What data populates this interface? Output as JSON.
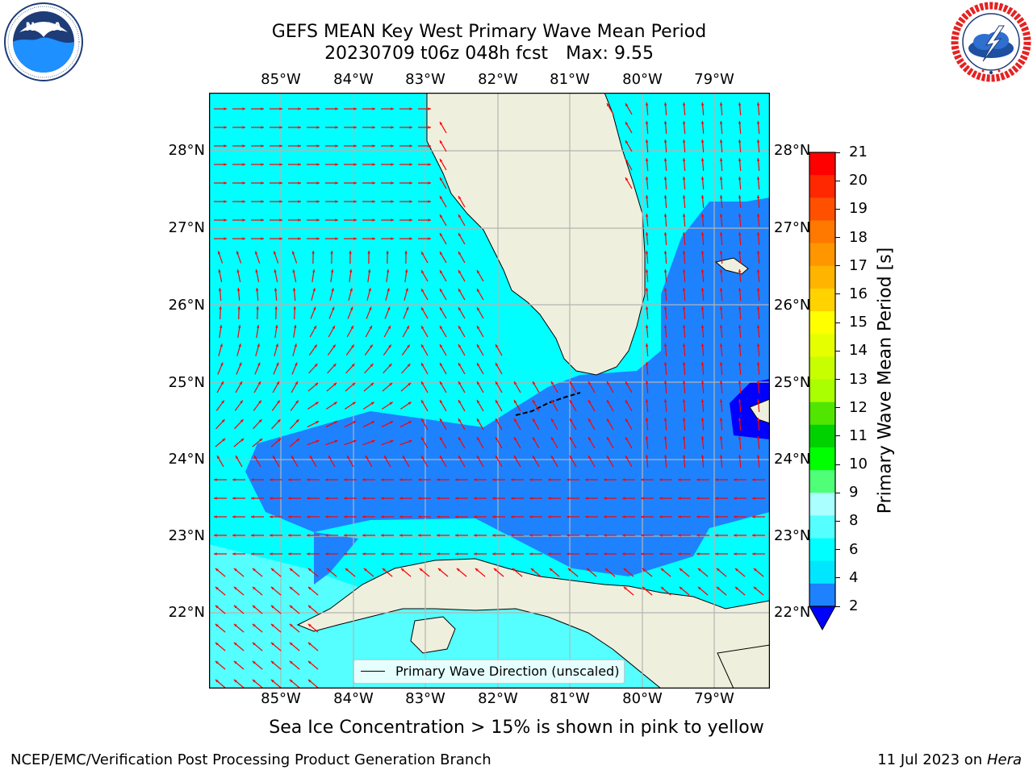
{
  "title": {
    "line1": "GEFS MEAN Key West Primary Wave Mean Period",
    "line2_date": "20230709 t06z 048h fcst",
    "line2_max": "Max: 9.55"
  },
  "logos": {
    "left": {
      "text": "NOAA",
      "ring_text": "NATIONAL OCEANIC AND ATMOSPHERIC ADMINISTRATION · U.S. DEPARTMENT OF COMMERCE",
      "icon": "noaa-logo"
    },
    "right": {
      "ring_text": "NATIONAL WEATHER SERVICE",
      "icon": "nws-logo"
    }
  },
  "map": {
    "lon_labels": [
      "85°W",
      "84°W",
      "83°W",
      "82°W",
      "81°W",
      "80°W",
      "79°W"
    ],
    "lat_labels": [
      "28°N",
      "27°N",
      "26°N",
      "25°N",
      "24°N",
      "23°N",
      "22°N"
    ],
    "extent": {
      "lon_min": -86.0,
      "lon_max": -78.25,
      "lat_min": 21.1,
      "lat_max": 28.75
    },
    "colors": {
      "land": "#efefdd",
      "ocean_4_6": "#00ffff",
      "ocean_6_8": "#55ffff",
      "ocean_2_4": "#1e82ff",
      "ocean_lt2": "#0000ff",
      "arrow": "#ff0000",
      "grid": "#b4b4b4"
    }
  },
  "legend": {
    "label": "Primary Wave Direction (unscaled)"
  },
  "colorbar": {
    "label": "Primary Wave Mean Period [s]",
    "ticks": [
      "21",
      "20",
      "19",
      "18",
      "17",
      "16",
      "15",
      "14",
      "13",
      "12",
      "11",
      "10",
      "9",
      "8",
      "6",
      "4",
      "2"
    ],
    "bands": [
      "#ff0000",
      "#ff2800",
      "#ff5000",
      "#ff7800",
      "#ff9600",
      "#ffb400",
      "#ffd200",
      "#ffff00",
      "#e6ff00",
      "#c8ff00",
      "#aaff00",
      "#50e600",
      "#00d200",
      "#00ff00",
      "#50ff78",
      "#aaffff",
      "#55ffff",
      "#00ffff",
      "#00e6ff",
      "#1e82ff"
    ],
    "extend_color": "#0000ff"
  },
  "subtitle": "Sea Ice Concentration > 15% is shown in pink to yellow",
  "footer": {
    "left": "NCEP/EMC/Verification Post Processing Product Generation Branch",
    "right_date": "11 Jul 2023 on",
    "right_host": "Hera"
  }
}
